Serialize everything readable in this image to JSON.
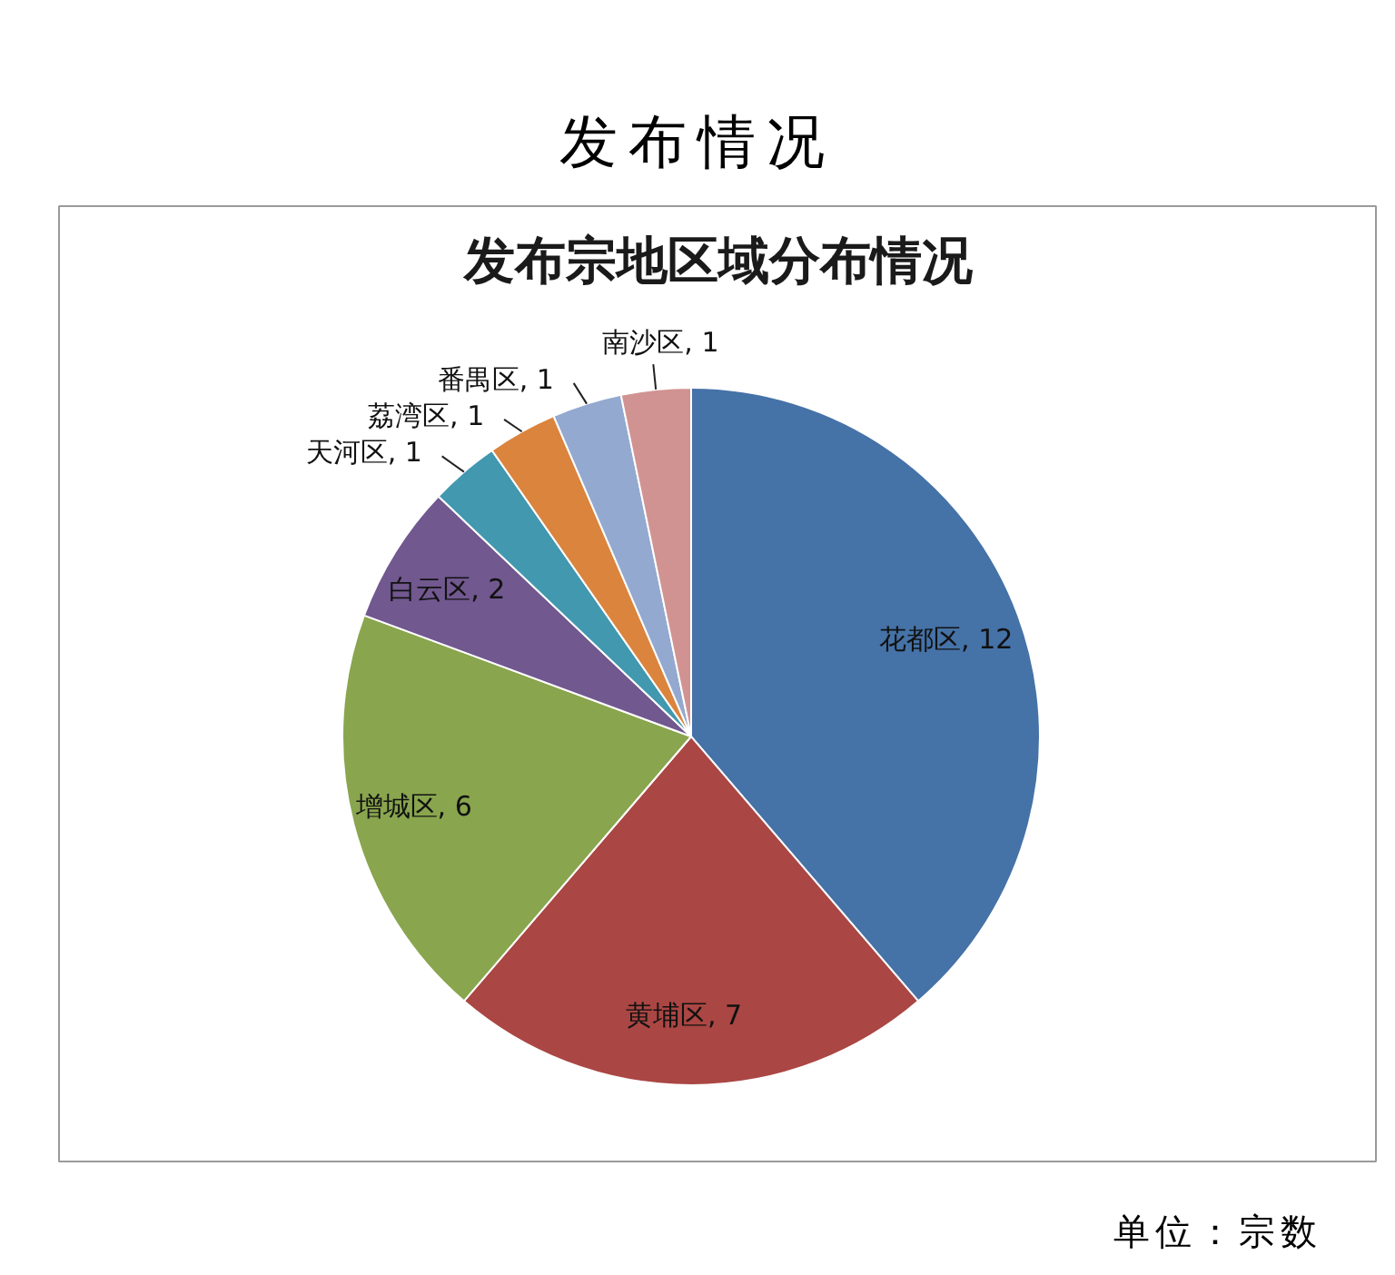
{
  "chart_data": {
    "type": "pie",
    "title": "发布情况",
    "subtitle": "发布宗地区域分布情况",
    "categories": [
      "花都区",
      "黄埔区",
      "增城区",
      "白云区",
      "天河区",
      "荔湾区",
      "番禺区",
      "南沙区"
    ],
    "values": [
      12,
      7,
      6,
      2,
      1,
      1,
      1,
      1
    ],
    "value_labels": [
      ", 12",
      ", 7",
      ", 6",
      ", 2",
      ", 1",
      ", 1",
      ", 1",
      ", 1"
    ],
    "colors": [
      "#4572a7",
      "#aa4643",
      "#89a54e",
      "#71588f",
      "#4198af",
      "#db843d",
      "#93a9cf",
      "#d19392"
    ],
    "annotations": [
      "单位：宗数"
    ]
  }
}
